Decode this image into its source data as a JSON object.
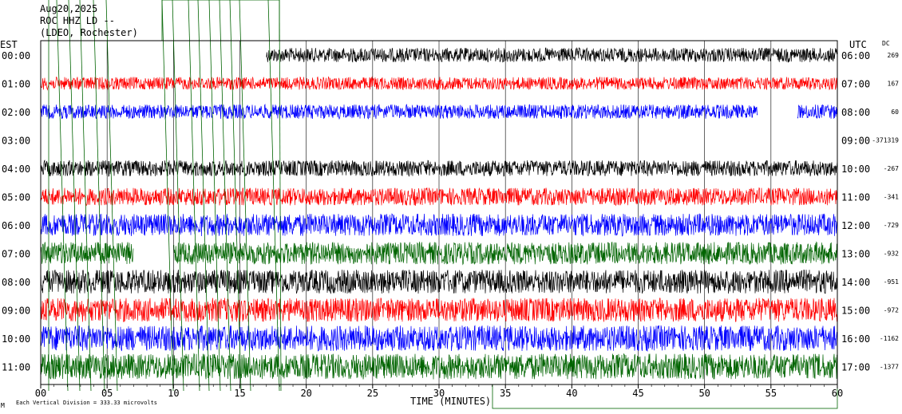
{
  "header": {
    "date": "Aug20,2025",
    "station": "ROC HHZ LD --",
    "network": "(LDEO, Rochester)"
  },
  "labels": {
    "left_zone": "EST",
    "right_zone": "UTC",
    "dc_header": "DC",
    "xlabel": "TIME (MINUTES)",
    "footer": "Each Vertical Division =  333.33 microvolts",
    "corner_mark": "M"
  },
  "colors": {
    "black": "#000000",
    "red": "#ff0000",
    "blue": "#0000ff",
    "green": "#006400",
    "event_lines": "#006400"
  },
  "chart_data": {
    "type": "line",
    "title": "ROC HHZ LD -- Aug20,2025",
    "xlabel": "TIME (MINUTES)",
    "xlim": [
      0,
      60
    ],
    "x_ticks": [
      "00",
      "05",
      "10",
      "15",
      "20",
      "25",
      "30",
      "35",
      "40",
      "45",
      "50",
      "55",
      "60"
    ],
    "grid": true,
    "amplitude_per_division_microvolts": 333.33,
    "series": [
      {
        "est": "00:00",
        "utc": "06:00",
        "dc": "269",
        "color": "black",
        "amp": 9,
        "segments": [
          [
            17,
            60
          ]
        ]
      },
      {
        "est": "01:00",
        "utc": "07:00",
        "dc": "167",
        "color": "red",
        "amp": 8,
        "segments": [
          [
            0,
            60
          ]
        ]
      },
      {
        "est": "02:00",
        "utc": "08:00",
        "dc": "60",
        "color": "blue",
        "amp": 9,
        "segments": [
          [
            0,
            54
          ],
          [
            57,
            60
          ]
        ]
      },
      {
        "est": "03:00",
        "utc": "09:00",
        "dc": "-371319",
        "color": "green",
        "amp": 0,
        "segments": []
      },
      {
        "est": "04:00",
        "utc": "10:00",
        "dc": "-267",
        "color": "black",
        "amp": 10,
        "segments": [
          [
            0,
            60
          ]
        ]
      },
      {
        "est": "05:00",
        "utc": "11:00",
        "dc": "-341",
        "color": "red",
        "amp": 11,
        "segments": [
          [
            0,
            60
          ]
        ]
      },
      {
        "est": "06:00",
        "utc": "12:00",
        "dc": "-729",
        "color": "blue",
        "amp": 14,
        "segments": [
          [
            0,
            60
          ]
        ]
      },
      {
        "est": "07:00",
        "utc": "13:00",
        "dc": "-932",
        "color": "green",
        "amp": 14,
        "segments": [
          [
            0,
            7
          ],
          [
            10,
            60
          ]
        ]
      },
      {
        "est": "08:00",
        "utc": "14:00",
        "dc": "-951",
        "color": "black",
        "amp": 15,
        "segments": [
          [
            0,
            60
          ]
        ]
      },
      {
        "est": "09:00",
        "utc": "15:00",
        "dc": "-972",
        "color": "red",
        "amp": 15,
        "segments": [
          [
            0,
            60
          ]
        ]
      },
      {
        "est": "10:00",
        "utc": "16:00",
        "dc": "-1162",
        "color": "blue",
        "amp": 16,
        "segments": [
          [
            0,
            60
          ]
        ]
      },
      {
        "est": "11:00",
        "utc": "17:00",
        "dc": "-1377",
        "color": "green",
        "amp": 16,
        "segments": [
          [
            0,
            60
          ]
        ]
      }
    ]
  }
}
